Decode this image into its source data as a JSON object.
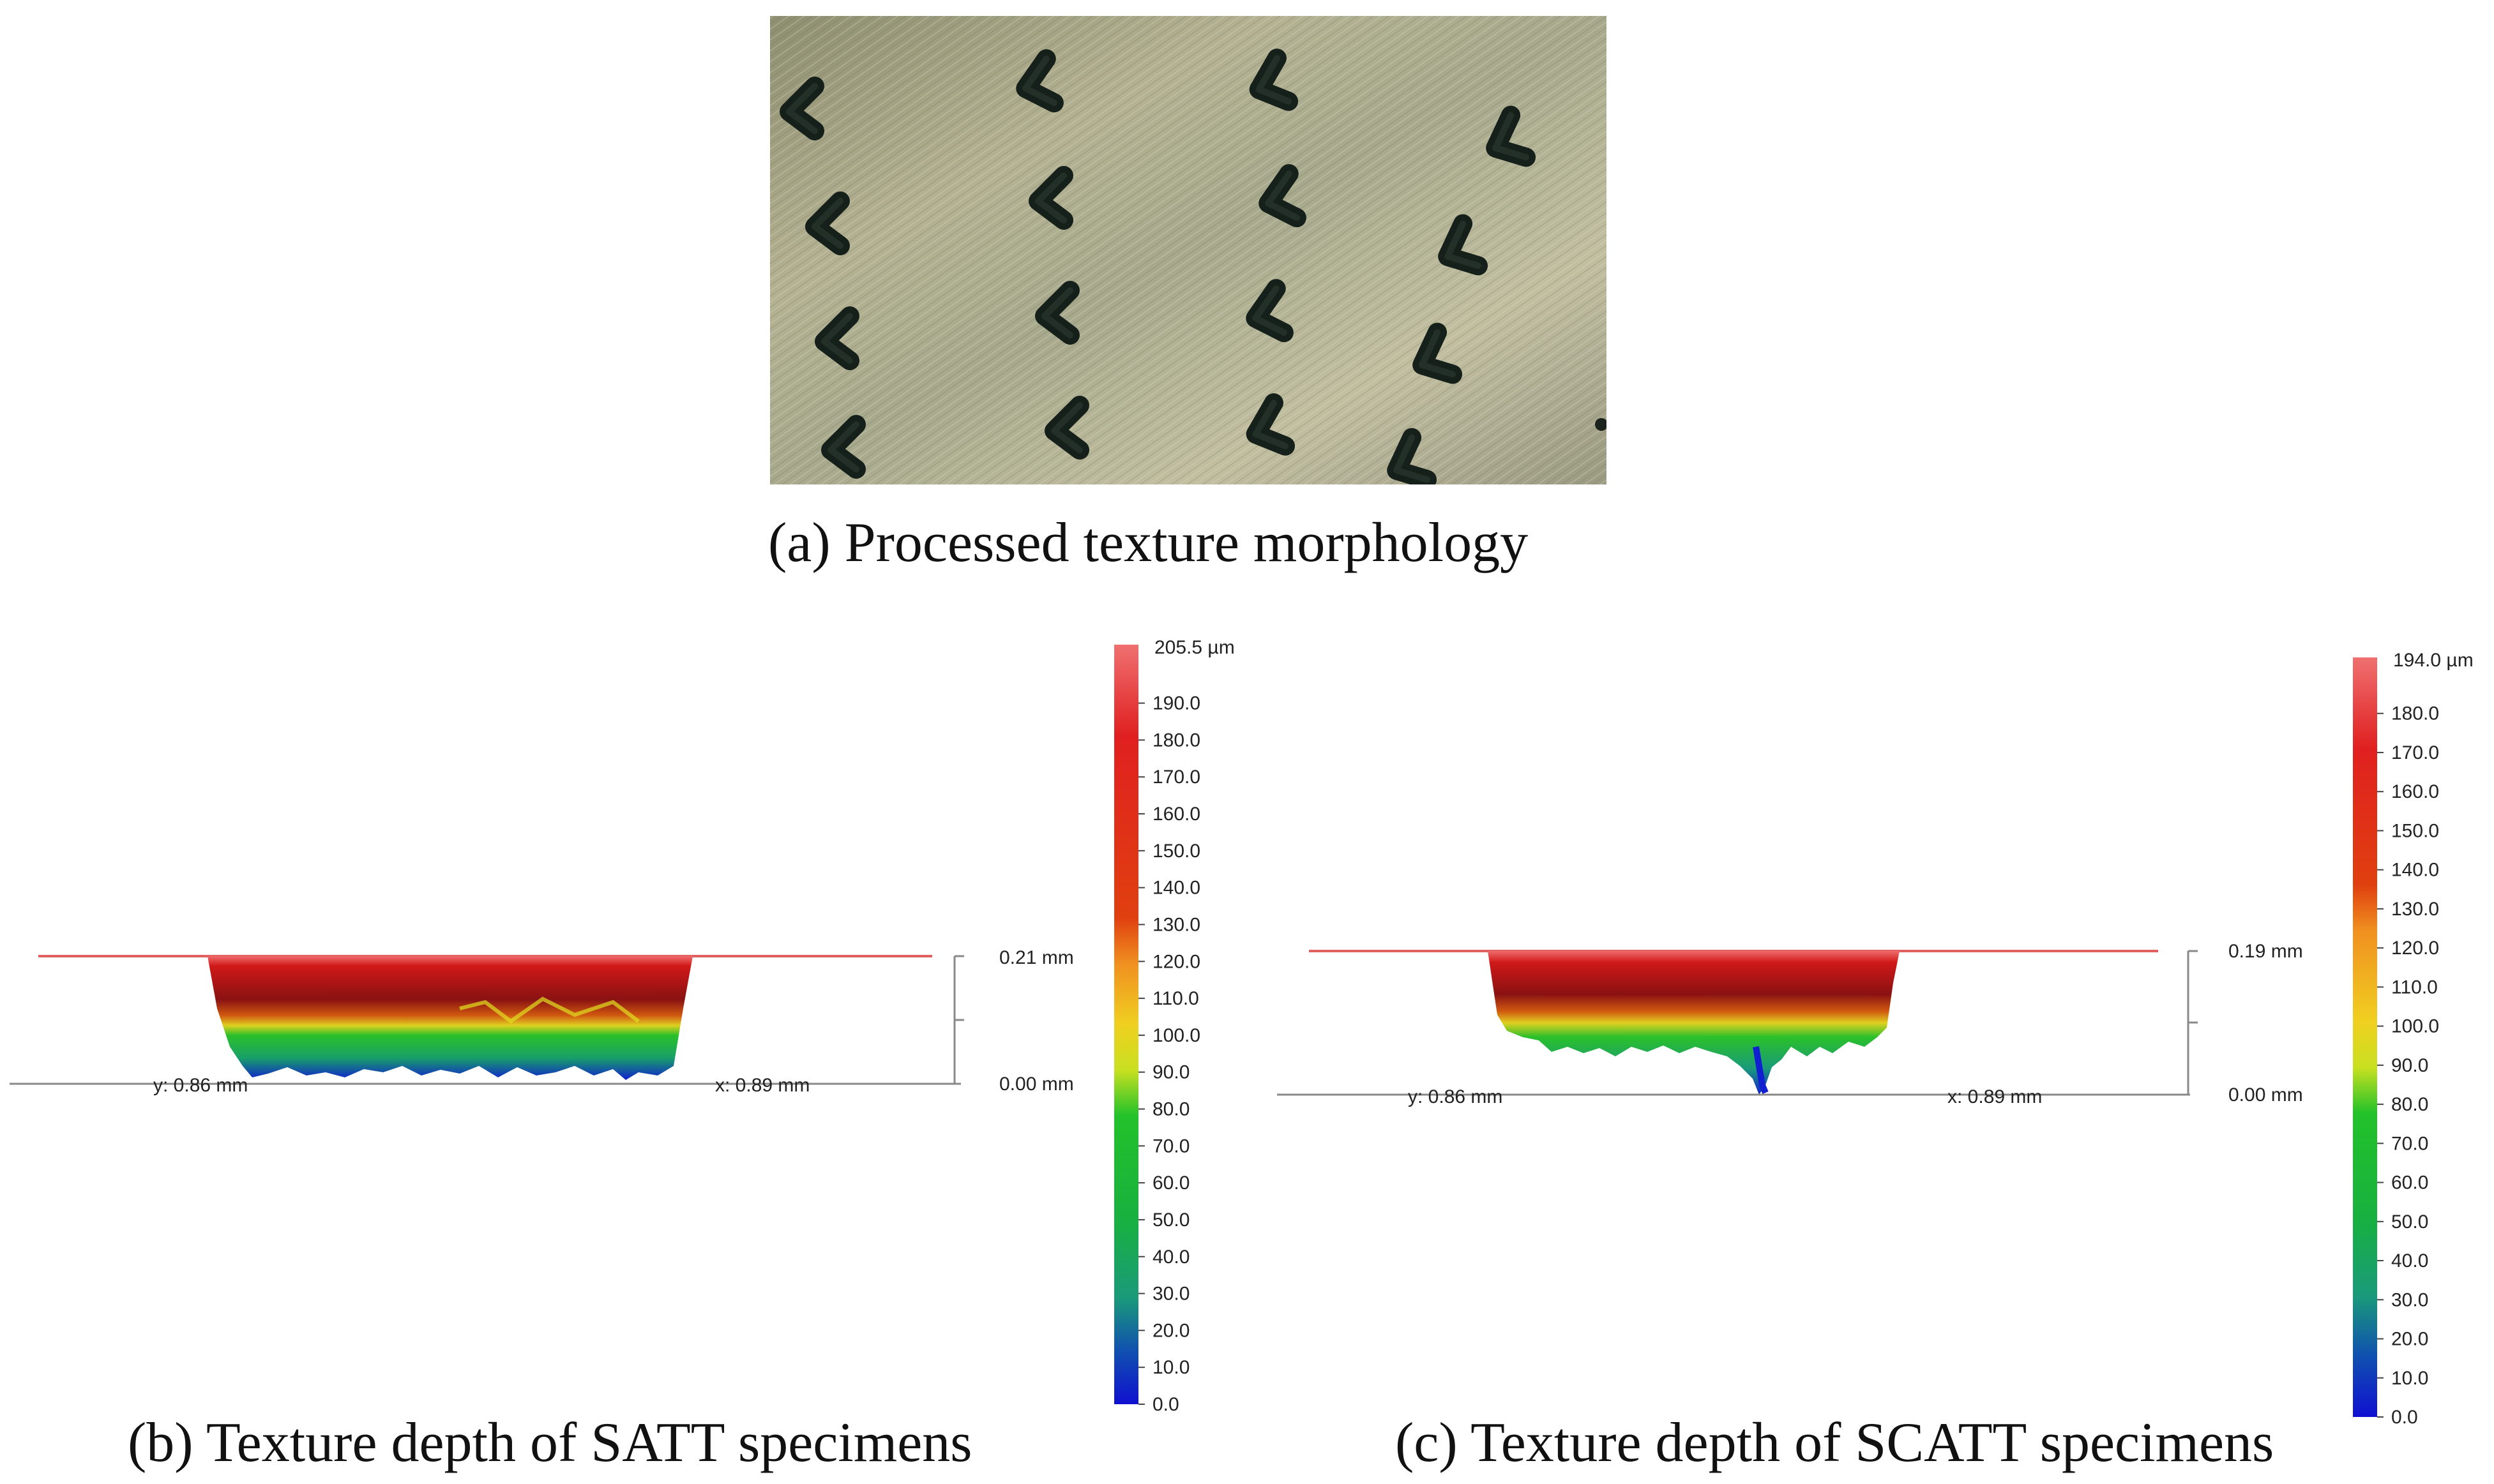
{
  "figure": {
    "panel_a": {
      "caption": "(a) Processed texture morphology",
      "photo_description_icon": "v-texture-micrograph"
    },
    "panel_b": {
      "caption": "(b) Texture depth of SATT specimens",
      "profile_top_label": "0.21 mm",
      "profile_bottom_label": "0.00 mm",
      "y_axis_label": "y: 0.86 mm",
      "x_axis_label": "x: 0.89 mm",
      "colorbar_max_label": "205.5 µm",
      "colorbar_ticks": [
        "190.0",
        "180.0",
        "170.0",
        "160.0",
        "150.0",
        "140.0",
        "130.0",
        "120.0",
        "110.0",
        "100.0",
        "90.0",
        "80.0",
        "70.0",
        "60.0",
        "50.0",
        "40.0",
        "30.0",
        "20.0",
        "10.0",
        "0.0"
      ]
    },
    "panel_c": {
      "caption": "(c) Texture depth of SCATT specimens",
      "profile_top_label": "0.19 mm",
      "profile_bottom_label": "0.00 mm",
      "y_axis_label": "y: 0.86 mm",
      "x_axis_label": "x: 0.89 mm",
      "colorbar_max_label": "194.0 µm",
      "colorbar_ticks": [
        "180.0",
        "170.0",
        "160.0",
        "150.0",
        "140.0",
        "130.0",
        "120.0",
        "110.0",
        "100.0",
        "90.0",
        "80.0",
        "70.0",
        "60.0",
        "50.0",
        "40.0",
        "30.0",
        "20.0",
        "10.0",
        "0.0"
      ]
    }
  },
  "colors": {
    "colorbar_top": "#f06b6b",
    "red": "#e01e1e",
    "orange": "#f0a020",
    "yellow": "#f0e020",
    "green": "#22c22a",
    "teal": "#1a9a7a",
    "blue": "#1020d0",
    "dark_red": "#7a1010"
  }
}
